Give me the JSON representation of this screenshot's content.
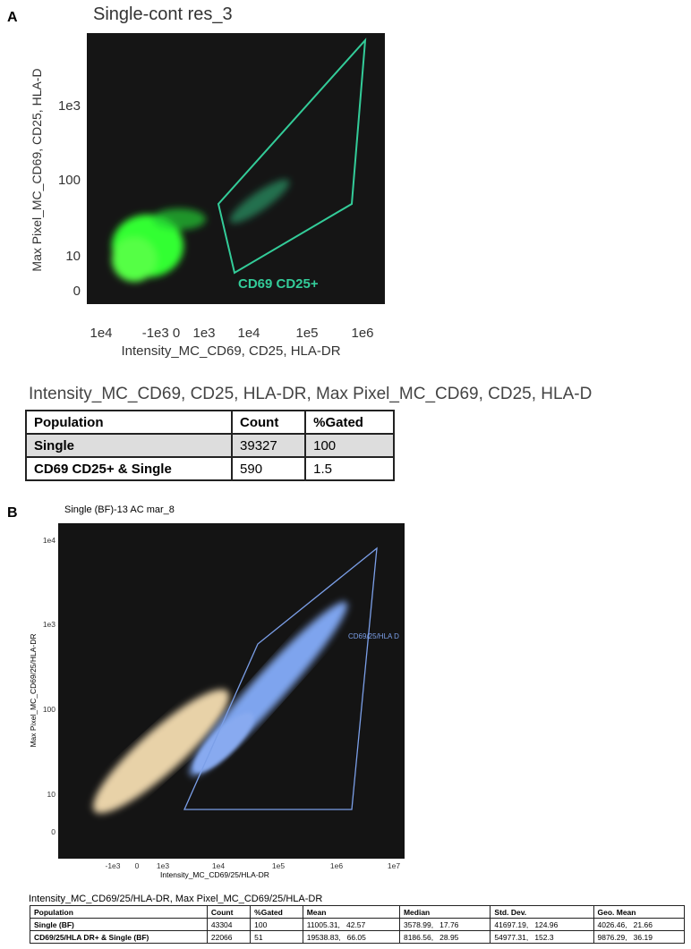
{
  "panel_a": {
    "label": "A",
    "title": "Single-cont res_3",
    "y_axis_label": "Max Pixel_MC_CD69, CD25, HLA-D",
    "x_axis_label": "Intensity_MC_CD69, CD25, HLA-DR",
    "y_ticks": [
      "1e3",
      "100",
      "10",
      "0"
    ],
    "x_ticks": [
      "1e4",
      "-1e3 0",
      "1e3",
      "1e4",
      "1e5",
      "1e6"
    ],
    "gate_label": "CD69 CD25+",
    "table_title": "Intensity_MC_CD69, CD25, HLA-DR, Max Pixel_MC_CD69, CD25, HLA-D",
    "table": {
      "header": [
        "Population",
        "Count",
        "%Gated"
      ],
      "rows": [
        [
          "Single",
          39327,
          100
        ],
        [
          "CD69 CD25+ & Single",
          590,
          1.5
        ]
      ]
    }
  },
  "panel_b": {
    "label": "B",
    "title": "Single (BF)-13 AC  mar_8",
    "y_axis_label": "Max Pixel_MC_CD69/25/HLA-DR",
    "x_axis_label": "Intensity_MC_CD69/25/HLA-DR",
    "y_ticks": [
      "1e4",
      "1e3",
      "100",
      "10",
      "0"
    ],
    "x_ticks": [
      "-1e3",
      "0",
      "1e3",
      "1e4",
      "1e5",
      "1e6",
      "1e7"
    ],
    "gate_label": "CD69/25/HLA D",
    "table_title": "Intensity_MC_CD69/25/HLA-DR, Max Pixel_MC_CD69/25/HLA-DR",
    "table": {
      "header": [
        "Population",
        "Count",
        "%Gated",
        "Mean",
        "Median",
        "Std. Dev.",
        "Geo. Mean"
      ],
      "rows": [
        [
          "Single (BF)",
          43304,
          100,
          "11005.31,   42.57",
          "3578.99,   17.76",
          "41697.19,   124.96",
          "4026.46,   21.66"
        ],
        [
          "CD69/25/HLA DR+ & Single (BF)",
          22066,
          51,
          "19538.83,   66.05",
          "8186.56,   28.95",
          "54977.31,   152.3",
          "9876.29,   36.19"
        ]
      ]
    }
  }
}
